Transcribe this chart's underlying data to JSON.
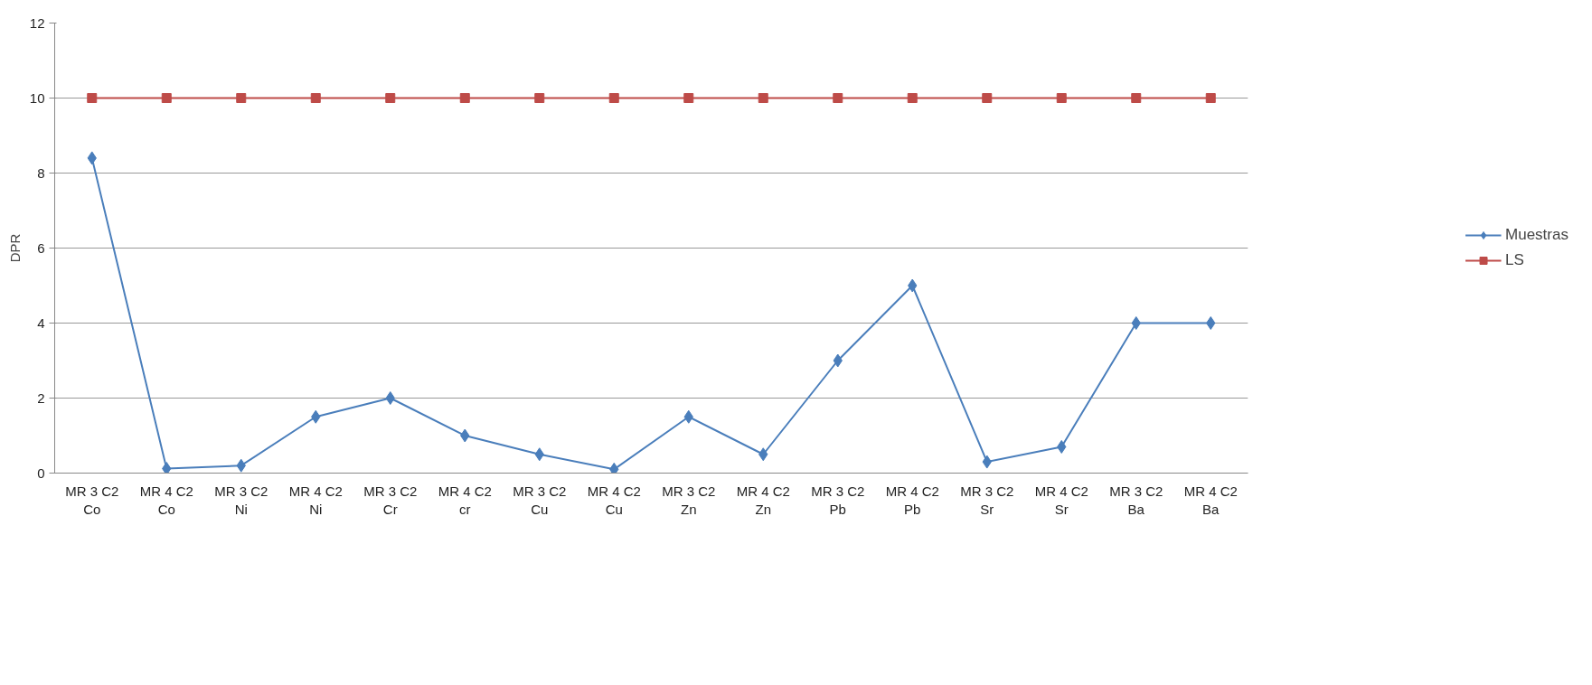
{
  "chart_data": {
    "type": "line",
    "ylabel": "DPR",
    "categories": [
      "MR 3 C2 Co",
      "MR 4 C2 Co",
      "MR 3 C2 Ni",
      "MR 4 C2 Ni",
      "MR 3 C2 Cr",
      "MR 4 C2 cr",
      "MR 3 C2 Cu",
      "MR 4 C2 Cu",
      "MR 3 C2 Zn",
      "MR 4 C2 Zn",
      "MR 3 C2 Pb",
      "MR 4 C2 Pb",
      "MR 3 C2 Sr",
      "MR 4 C2 Sr",
      "MR 3 C2 Ba",
      "MR 4 C2 Ba"
    ],
    "series": [
      {
        "name": "Muestras",
        "color": "#4a7ebb",
        "marker": "diamond",
        "values": [
          8.4,
          0.12,
          0.2,
          1.5,
          2,
          1,
          0.5,
          0.1,
          1.5,
          0.5,
          3,
          5,
          0.3,
          0.7,
          4,
          4
        ]
      },
      {
        "name": "LS",
        "color": "#be4b48",
        "marker": "square",
        "values": [
          10,
          10,
          10,
          10,
          10,
          10,
          10,
          10,
          10,
          10,
          10,
          10,
          10,
          10,
          10,
          10
        ]
      }
    ],
    "ylim": [
      0,
      12
    ],
    "yticks": [
      0,
      2,
      4,
      6,
      8,
      10,
      12
    ],
    "grid": "y",
    "legend": "right",
    "line_style": "solid"
  }
}
